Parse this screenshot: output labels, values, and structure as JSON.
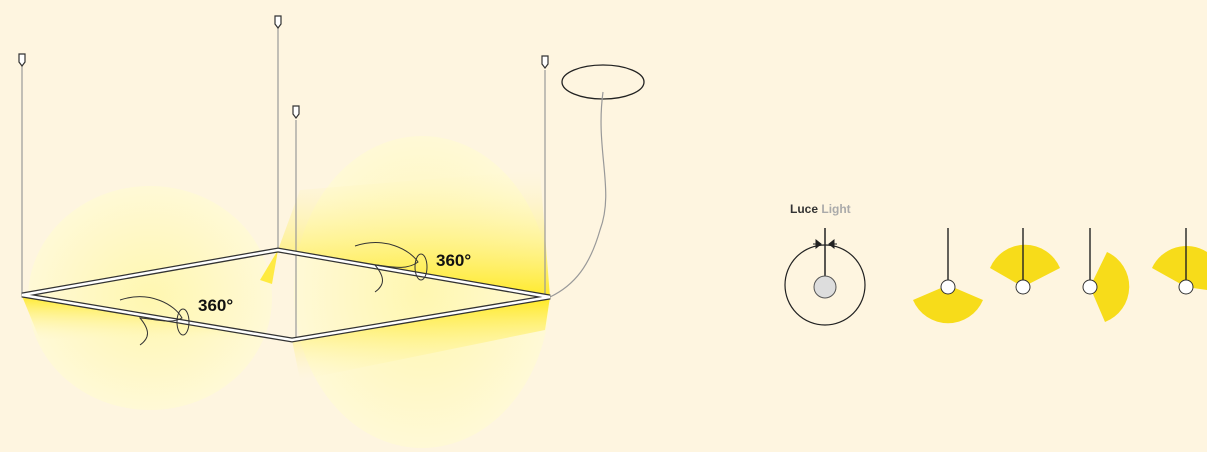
{
  "rotation_labels": [
    "360°",
    "360°"
  ],
  "legend": {
    "luce": "Luce",
    "light": "Light"
  }
}
